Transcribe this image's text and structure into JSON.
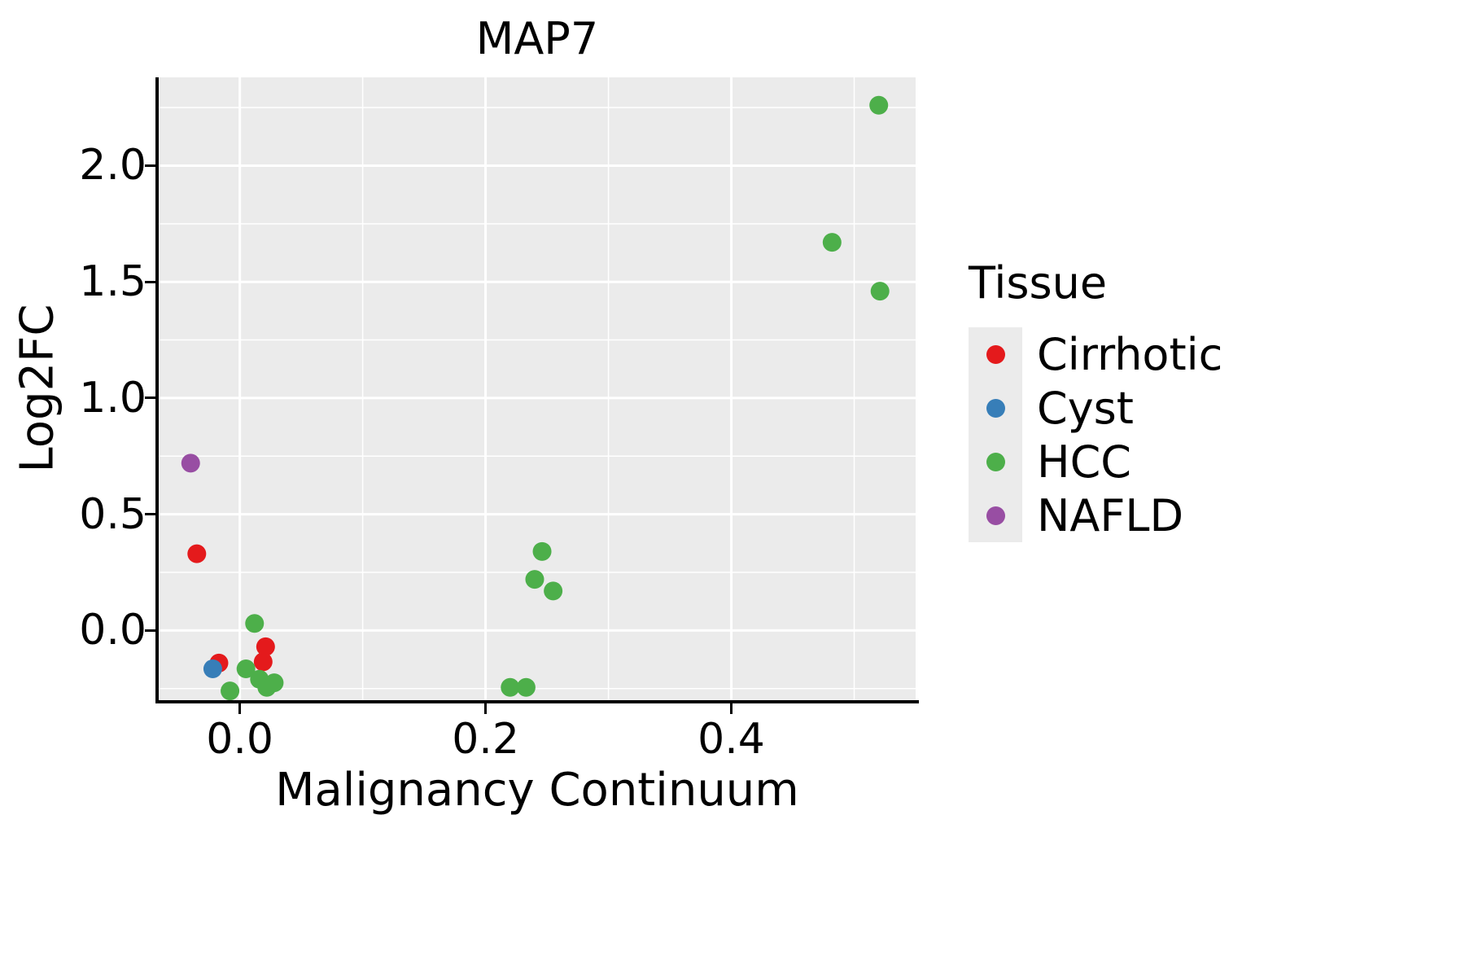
{
  "figure": {
    "title": "MAP7",
    "x_axis": {
      "label": "Malignancy Continuum"
    },
    "y_axis": {
      "label": "Log2FC"
    },
    "legend": {
      "title": "Tissue",
      "entries": [
        {
          "label": "Cirrhotic",
          "color": "#E41A1C"
        },
        {
          "label": "Cyst",
          "color": "#377EB8"
        },
        {
          "label": "HCC",
          "color": "#4DAF4A"
        },
        {
          "label": "NAFLD",
          "color": "#984EA3"
        }
      ]
    }
  },
  "chart_data": {
    "type": "scatter",
    "title": "MAP7",
    "xlabel": "Malignancy Continuum",
    "ylabel": "Log2FC",
    "xlim": [
      -0.066,
      0.55
    ],
    "ylim": [
      -0.3,
      2.38
    ],
    "x_ticks": [
      0.0,
      0.2,
      0.4
    ],
    "x_tick_labels": [
      "0.0",
      "0.2",
      "0.4"
    ],
    "x_minor_ticks": [
      0.1,
      0.3,
      0.5
    ],
    "y_ticks": [
      0.0,
      0.5,
      1.0,
      1.5,
      2.0
    ],
    "y_tick_labels": [
      "0.0",
      "0.5",
      "1.0",
      "1.5",
      "2.0"
    ],
    "y_minor_ticks": [
      -0.25,
      0.25,
      0.75,
      1.25,
      1.75,
      2.25
    ],
    "grid": true,
    "legend_position": "right",
    "panel_background": "#EBEBEB",
    "series": [
      {
        "name": "Cirrhotic",
        "color": "#E41A1C",
        "points": [
          [
            -0.035,
            0.33
          ],
          [
            -0.017,
            -0.14
          ],
          [
            0.021,
            -0.07
          ],
          [
            0.019,
            -0.135
          ]
        ]
      },
      {
        "name": "Cyst",
        "color": "#377EB8",
        "points": [
          [
            -0.022,
            -0.165
          ]
        ]
      },
      {
        "name": "HCC",
        "color": "#4DAF4A",
        "points": [
          [
            -0.008,
            -0.26
          ],
          [
            0.012,
            0.03
          ],
          [
            0.005,
            -0.165
          ],
          [
            0.016,
            -0.21
          ],
          [
            0.022,
            -0.245
          ],
          [
            0.028,
            -0.225
          ],
          [
            0.22,
            -0.245
          ],
          [
            0.233,
            -0.245
          ],
          [
            0.246,
            0.34
          ],
          [
            0.24,
            0.22
          ],
          [
            0.255,
            0.17
          ],
          [
            0.482,
            1.67
          ],
          [
            0.52,
            2.26
          ],
          [
            0.521,
            1.46
          ]
        ]
      },
      {
        "name": "NAFLD",
        "color": "#984EA3",
        "points": [
          [
            -0.04,
            0.72
          ]
        ]
      }
    ]
  }
}
